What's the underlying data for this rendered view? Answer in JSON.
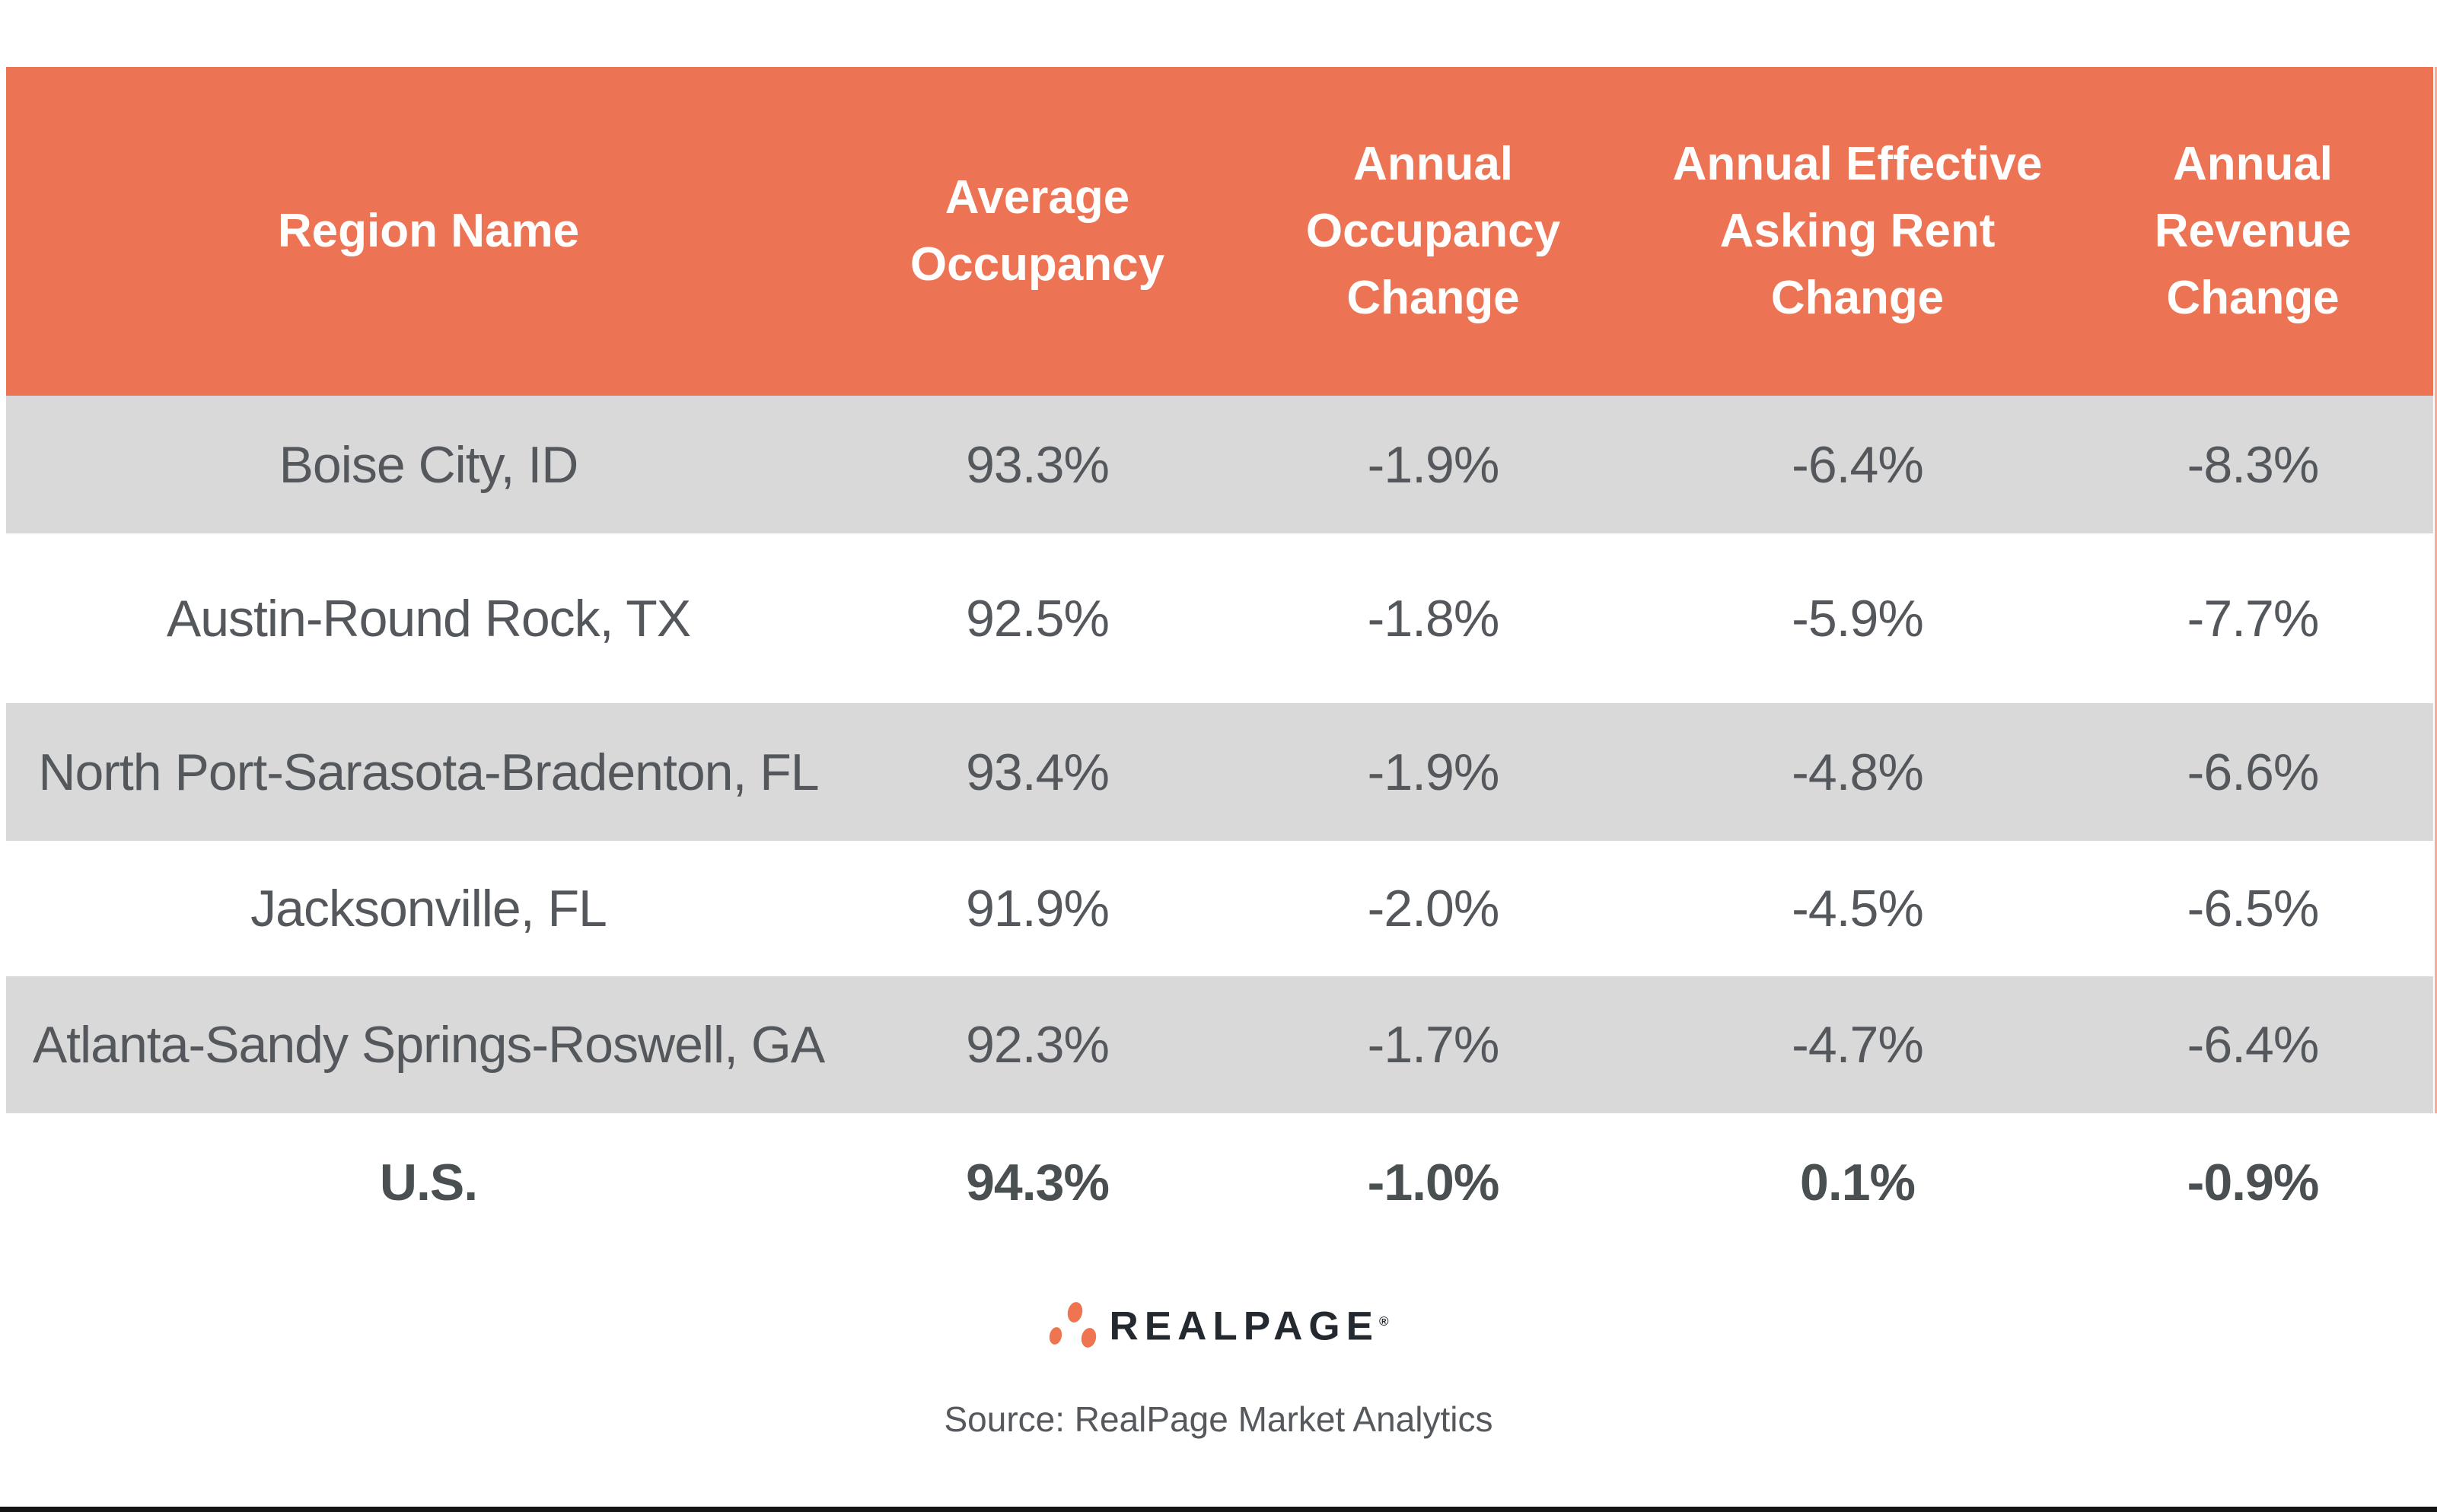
{
  "chart_data": {
    "type": "table",
    "columns": [
      "Region Name",
      "Average Occupancy",
      "Annual Occupancy Change",
      "Annual Effective Asking Rent Change",
      "Annual Revenue Change"
    ],
    "rows": [
      [
        "Boise City, ID",
        "93.3%",
        "-1.9%",
        "-6.4%",
        "-8.3%"
      ],
      [
        "Austin-Round Rock, TX",
        "92.5%",
        "-1.8%",
        "-5.9%",
        "-7.7%"
      ],
      [
        "North Port-Sarasota-Bradenton, FL",
        "93.4%",
        "-1.9%",
        "-4.8%",
        "-6.6%"
      ],
      [
        "Jacksonville, FL",
        "91.9%",
        "-2.0%",
        "-4.5%",
        "-6.5%"
      ],
      [
        "Atlanta-Sandy Springs-Roswell, GA",
        "92.3%",
        "-1.7%",
        "-4.7%",
        "-6.4%"
      ],
      [
        "U.S.",
        "94.3%",
        "-1.0%",
        "0.1%",
        "-0.9%"
      ]
    ],
    "title": "",
    "source": "Source: RealPage Market Analytics",
    "layout_hints": {
      "header_bg": "#EC7454",
      "alternate_row_shade": "#D9D9D9",
      "shaded_row_indexes": [
        0,
        2,
        4
      ],
      "total_row_index": 5,
      "grid": "off"
    }
  },
  "display": {
    "header_labels": [
      "Region Name",
      "Average\nOccupancy",
      "Annual\nOccupancy\nChange",
      "Annual Effective\nAsking Rent\nChange",
      "Annual\nRevenue\nChange"
    ]
  },
  "footer": {
    "brand": "REALPAGE",
    "registered_mark": "®",
    "source": "Source: RealPage Market Analytics"
  },
  "colors": {
    "header_bg": "#EC7454",
    "header_text": "#FFFFFF",
    "row_shade": "#D9D9D9",
    "cell_text": "#54585C",
    "logo_orange": "#EE7550",
    "logo_text": "#23292E"
  }
}
